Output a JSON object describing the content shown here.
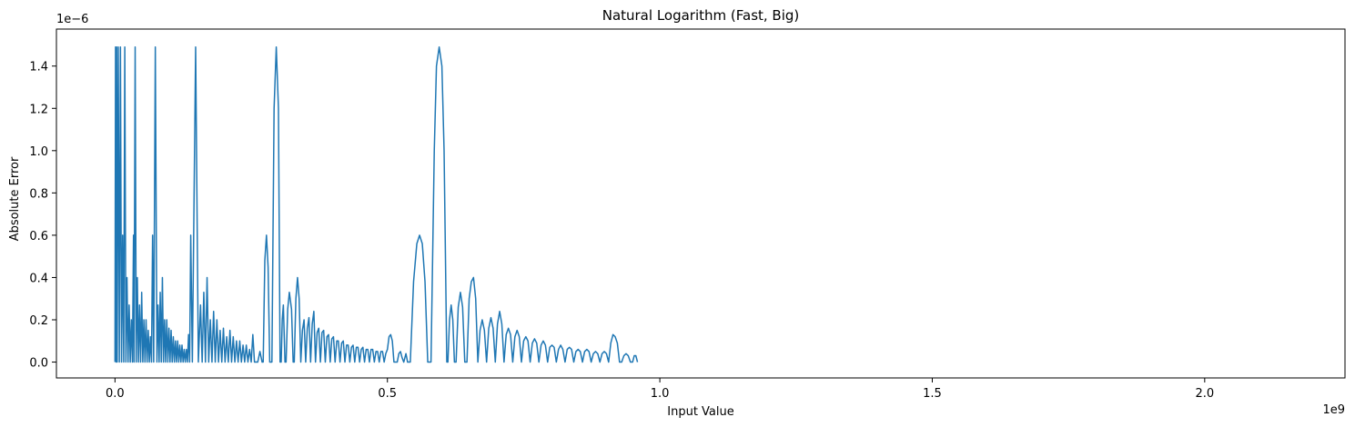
{
  "chart_data": {
    "type": "line",
    "title": "Natural Logarithm (Fast, Big)",
    "xlabel": "Input Value",
    "ylabel": "Absolute Error",
    "x_offset_label": "1e9",
    "y_offset_label": "1e−6",
    "x_scale": 1000000000.0,
    "y_scale": 1e-06,
    "xlim": [
      -0.1075,
      2.2575
    ],
    "ylim": [
      -0.075,
      1.575
    ],
    "x_ticks": [
      0.0,
      0.5,
      1.0,
      1.5,
      2.0
    ],
    "x_tick_labels": [
      "0.0",
      "0.5",
      "1.0",
      "1.5",
      "2.0"
    ],
    "y_ticks": [
      0.0,
      0.2,
      0.4,
      0.6,
      0.8,
      1.0,
      1.2,
      1.4
    ],
    "y_tick_labels": [
      "0.0",
      "0.2",
      "0.4",
      "0.6",
      "0.8",
      "1.0",
      "1.2",
      "1.4"
    ],
    "grid": false,
    "series": [
      {
        "color": "#1f77b4",
        "points": [
          [
            0.0,
            0.0
          ],
          [
            0.001,
            1.49
          ],
          [
            0.002,
            0.0
          ],
          [
            0.003,
            1.49
          ],
          [
            0.004,
            0.0
          ],
          [
            0.006,
            1.49
          ],
          [
            0.008,
            0.0
          ],
          [
            0.01,
            1.49
          ],
          [
            0.012,
            0.0
          ],
          [
            0.014,
            0.6
          ],
          [
            0.016,
            0.0
          ],
          [
            0.018,
            1.49
          ],
          [
            0.02,
            0.0
          ],
          [
            0.022,
            0.4
          ],
          [
            0.024,
            0.0
          ],
          [
            0.026,
            0.27
          ],
          [
            0.028,
            0.0
          ],
          [
            0.03,
            0.2
          ],
          [
            0.032,
            0.0
          ],
          [
            0.034,
            0.6
          ],
          [
            0.035,
            0.0
          ],
          [
            0.037,
            1.49
          ],
          [
            0.039,
            0.0
          ],
          [
            0.041,
            0.4
          ],
          [
            0.043,
            0.0
          ],
          [
            0.045,
            0.27
          ],
          [
            0.047,
            0.0
          ],
          [
            0.049,
            0.33
          ],
          [
            0.051,
            0.0
          ],
          [
            0.053,
            0.2
          ],
          [
            0.055,
            0.0
          ],
          [
            0.057,
            0.2
          ],
          [
            0.059,
            0.0
          ],
          [
            0.061,
            0.15
          ],
          [
            0.063,
            0.0
          ],
          [
            0.065,
            0.12
          ],
          [
            0.067,
            0.0
          ],
          [
            0.069,
            0.6
          ],
          [
            0.071,
            0.0
          ],
          [
            0.074,
            1.49
          ],
          [
            0.077,
            0.0
          ],
          [
            0.079,
            0.27
          ],
          [
            0.081,
            0.0
          ],
          [
            0.083,
            0.33
          ],
          [
            0.085,
            0.0
          ],
          [
            0.087,
            0.4
          ],
          [
            0.089,
            0.0
          ],
          [
            0.091,
            0.2
          ],
          [
            0.093,
            0.0
          ],
          [
            0.095,
            0.2
          ],
          [
            0.097,
            0.0
          ],
          [
            0.099,
            0.16
          ],
          [
            0.101,
            0.0
          ],
          [
            0.103,
            0.15
          ],
          [
            0.105,
            0.0
          ],
          [
            0.107,
            0.12
          ],
          [
            0.109,
            0.0
          ],
          [
            0.111,
            0.1
          ],
          [
            0.113,
            0.0
          ],
          [
            0.115,
            0.1
          ],
          [
            0.117,
            0.0
          ],
          [
            0.119,
            0.08
          ],
          [
            0.121,
            0.0
          ],
          [
            0.123,
            0.08
          ],
          [
            0.125,
            0.0
          ],
          [
            0.127,
            0.06
          ],
          [
            0.129,
            0.0
          ],
          [
            0.131,
            0.06
          ],
          [
            0.133,
            0.0
          ],
          [
            0.135,
            0.13
          ],
          [
            0.137,
            0.0
          ],
          [
            0.139,
            0.6
          ],
          [
            0.142,
            0.0
          ],
          [
            0.148,
            1.49
          ],
          [
            0.153,
            0.0
          ],
          [
            0.157,
            0.27
          ],
          [
            0.16,
            0.0
          ],
          [
            0.163,
            0.33
          ],
          [
            0.166,
            0.0
          ],
          [
            0.169,
            0.4
          ],
          [
            0.172,
            0.0
          ],
          [
            0.175,
            0.2
          ],
          [
            0.178,
            0.0
          ],
          [
            0.181,
            0.24
          ],
          [
            0.184,
            0.0
          ],
          [
            0.187,
            0.2
          ],
          [
            0.19,
            0.0
          ],
          [
            0.193,
            0.15
          ],
          [
            0.196,
            0.0
          ],
          [
            0.199,
            0.16
          ],
          [
            0.202,
            0.0
          ],
          [
            0.205,
            0.12
          ],
          [
            0.208,
            0.0
          ],
          [
            0.211,
            0.15
          ],
          [
            0.214,
            0.0
          ],
          [
            0.217,
            0.12
          ],
          [
            0.22,
            0.0
          ],
          [
            0.223,
            0.1
          ],
          [
            0.226,
            0.0
          ],
          [
            0.229,
            0.1
          ],
          [
            0.232,
            0.0
          ],
          [
            0.235,
            0.08
          ],
          [
            0.238,
            0.0
          ],
          [
            0.241,
            0.08
          ],
          [
            0.244,
            0.0
          ],
          [
            0.247,
            0.06
          ],
          [
            0.25,
            0.0
          ],
          [
            0.253,
            0.13
          ],
          [
            0.256,
            0.0
          ],
          [
            0.262,
            0.0
          ],
          [
            0.266,
            0.05
          ],
          [
            0.27,
            0.0
          ],
          [
            0.272,
            0.0
          ],
          [
            0.275,
            0.48
          ],
          [
            0.278,
            0.6
          ],
          [
            0.281,
            0.45
          ],
          [
            0.284,
            0.0
          ],
          [
            0.288,
            0.0
          ],
          [
            0.292,
            1.2
          ],
          [
            0.296,
            1.49
          ],
          [
            0.3,
            1.2
          ],
          [
            0.303,
            0.0
          ],
          [
            0.305,
            0.0
          ],
          [
            0.307,
            0.2
          ],
          [
            0.309,
            0.27
          ],
          [
            0.312,
            0.0
          ],
          [
            0.314,
            0.0
          ],
          [
            0.317,
            0.25
          ],
          [
            0.32,
            0.33
          ],
          [
            0.324,
            0.25
          ],
          [
            0.327,
            0.0
          ],
          [
            0.329,
            0.0
          ],
          [
            0.332,
            0.3
          ],
          [
            0.335,
            0.4
          ],
          [
            0.338,
            0.3
          ],
          [
            0.341,
            0.0
          ],
          [
            0.344,
            0.15
          ],
          [
            0.347,
            0.2
          ],
          [
            0.35,
            0.0
          ],
          [
            0.353,
            0.16
          ],
          [
            0.356,
            0.21
          ],
          [
            0.359,
            0.0
          ],
          [
            0.362,
            0.18
          ],
          [
            0.365,
            0.24
          ],
          [
            0.368,
            0.0
          ],
          [
            0.371,
            0.14
          ],
          [
            0.374,
            0.16
          ],
          [
            0.377,
            0.0
          ],
          [
            0.38,
            0.14
          ],
          [
            0.383,
            0.15
          ],
          [
            0.386,
            0.0
          ],
          [
            0.389,
            0.12
          ],
          [
            0.392,
            0.13
          ],
          [
            0.395,
            0.0
          ],
          [
            0.398,
            0.11
          ],
          [
            0.401,
            0.12
          ],
          [
            0.404,
            0.0
          ],
          [
            0.407,
            0.1
          ],
          [
            0.41,
            0.1
          ],
          [
            0.413,
            0.0
          ],
          [
            0.416,
            0.09
          ],
          [
            0.419,
            0.1
          ],
          [
            0.422,
            0.0
          ],
          [
            0.425,
            0.08
          ],
          [
            0.428,
            0.08
          ],
          [
            0.431,
            0.0
          ],
          [
            0.434,
            0.07
          ],
          [
            0.437,
            0.08
          ],
          [
            0.44,
            0.0
          ],
          [
            0.443,
            0.07
          ],
          [
            0.446,
            0.07
          ],
          [
            0.449,
            0.0
          ],
          [
            0.452,
            0.06
          ],
          [
            0.455,
            0.07
          ],
          [
            0.458,
            0.0
          ],
          [
            0.461,
            0.06
          ],
          [
            0.464,
            0.06
          ],
          [
            0.467,
            0.0
          ],
          [
            0.47,
            0.06
          ],
          [
            0.473,
            0.06
          ],
          [
            0.476,
            0.0
          ],
          [
            0.479,
            0.05
          ],
          [
            0.482,
            0.05
          ],
          [
            0.485,
            0.0
          ],
          [
            0.488,
            0.05
          ],
          [
            0.491,
            0.05
          ],
          [
            0.494,
            0.0
          ],
          [
            0.497,
            0.04
          ],
          [
            0.5,
            0.06
          ],
          [
            0.503,
            0.12
          ],
          [
            0.506,
            0.13
          ],
          [
            0.509,
            0.1
          ],
          [
            0.512,
            0.0
          ],
          [
            0.518,
            0.0
          ],
          [
            0.521,
            0.04
          ],
          [
            0.524,
            0.05
          ],
          [
            0.527,
            0.02
          ],
          [
            0.53,
            0.0
          ],
          [
            0.534,
            0.04
          ],
          [
            0.537,
            0.0
          ],
          [
            0.542,
            0.0
          ],
          [
            0.548,
            0.38
          ],
          [
            0.554,
            0.56
          ],
          [
            0.559,
            0.6
          ],
          [
            0.564,
            0.56
          ],
          [
            0.569,
            0.38
          ],
          [
            0.574,
            0.0
          ],
          [
            0.58,
            0.0
          ],
          [
            0.586,
            1.0
          ],
          [
            0.59,
            1.4
          ],
          [
            0.595,
            1.49
          ],
          [
            0.6,
            1.4
          ],
          [
            0.604,
            1.0
          ],
          [
            0.609,
            0.0
          ],
          [
            0.611,
            0.0
          ],
          [
            0.614,
            0.2
          ],
          [
            0.617,
            0.27
          ],
          [
            0.62,
            0.2
          ],
          [
            0.623,
            0.0
          ],
          [
            0.626,
            0.0
          ],
          [
            0.63,
            0.26
          ],
          [
            0.634,
            0.33
          ],
          [
            0.638,
            0.26
          ],
          [
            0.642,
            0.0
          ],
          [
            0.646,
            0.0
          ],
          [
            0.65,
            0.3
          ],
          [
            0.654,
            0.38
          ],
          [
            0.658,
            0.4
          ],
          [
            0.662,
            0.3
          ],
          [
            0.666,
            0.0
          ],
          [
            0.67,
            0.15
          ],
          [
            0.674,
            0.2
          ],
          [
            0.678,
            0.15
          ],
          [
            0.682,
            0.0
          ],
          [
            0.686,
            0.16
          ],
          [
            0.69,
            0.21
          ],
          [
            0.694,
            0.16
          ],
          [
            0.698,
            0.0
          ],
          [
            0.702,
            0.18
          ],
          [
            0.706,
            0.24
          ],
          [
            0.71,
            0.18
          ],
          [
            0.714,
            0.0
          ],
          [
            0.718,
            0.13
          ],
          [
            0.722,
            0.16
          ],
          [
            0.726,
            0.13
          ],
          [
            0.73,
            0.0
          ],
          [
            0.734,
            0.12
          ],
          [
            0.738,
            0.15
          ],
          [
            0.742,
            0.12
          ],
          [
            0.746,
            0.0
          ],
          [
            0.75,
            0.1
          ],
          [
            0.754,
            0.12
          ],
          [
            0.758,
            0.1
          ],
          [
            0.762,
            0.0
          ],
          [
            0.766,
            0.09
          ],
          [
            0.77,
            0.11
          ],
          [
            0.774,
            0.09
          ],
          [
            0.778,
            0.0
          ],
          [
            0.782,
            0.08
          ],
          [
            0.786,
            0.1
          ],
          [
            0.79,
            0.08
          ],
          [
            0.794,
            0.0
          ],
          [
            0.798,
            0.07
          ],
          [
            0.802,
            0.08
          ],
          [
            0.806,
            0.07
          ],
          [
            0.81,
            0.0
          ],
          [
            0.814,
            0.06
          ],
          [
            0.818,
            0.08
          ],
          [
            0.822,
            0.06
          ],
          [
            0.826,
            0.0
          ],
          [
            0.83,
            0.06
          ],
          [
            0.834,
            0.07
          ],
          [
            0.838,
            0.06
          ],
          [
            0.842,
            0.0
          ],
          [
            0.846,
            0.05
          ],
          [
            0.85,
            0.06
          ],
          [
            0.854,
            0.05
          ],
          [
            0.858,
            0.0
          ],
          [
            0.862,
            0.05
          ],
          [
            0.866,
            0.06
          ],
          [
            0.87,
            0.05
          ],
          [
            0.874,
            0.0
          ],
          [
            0.878,
            0.04
          ],
          [
            0.882,
            0.05
          ],
          [
            0.886,
            0.04
          ],
          [
            0.89,
            0.0
          ],
          [
            0.894,
            0.04
          ],
          [
            0.898,
            0.05
          ],
          [
            0.902,
            0.04
          ],
          [
            0.906,
            0.0
          ],
          [
            0.91,
            0.09
          ],
          [
            0.914,
            0.13
          ],
          [
            0.918,
            0.12
          ],
          [
            0.922,
            0.09
          ],
          [
            0.926,
            0.0
          ],
          [
            0.93,
            0.0
          ],
          [
            0.934,
            0.03
          ],
          [
            0.938,
            0.04
          ],
          [
            0.942,
            0.03
          ],
          [
            0.946,
            0.0
          ],
          [
            0.95,
            0.0
          ],
          [
            0.953,
            0.03
          ],
          [
            0.956,
            0.03
          ],
          [
            0.959,
            0.0
          ]
        ]
      }
    ]
  }
}
